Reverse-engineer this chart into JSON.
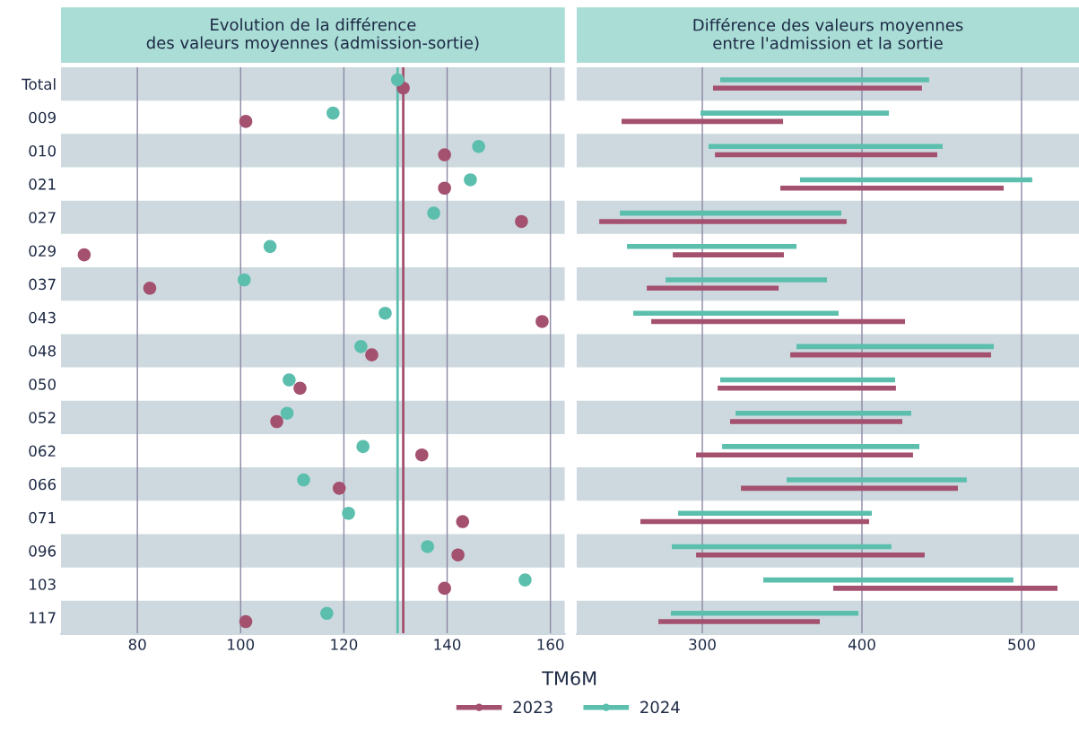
{
  "chart_data": [
    {
      "type": "scatter",
      "orientation": "horizontal",
      "title": "Evolution de la différence\ndes valeurs moyennes (admission-sortie)",
      "xlabel": "TM6M",
      "categories": [
        "Total",
        "009",
        "010",
        "021",
        "027",
        "029",
        "037",
        "043",
        "048",
        "050",
        "052",
        "062",
        "066",
        "071",
        "096",
        "103",
        "117"
      ],
      "series": [
        {
          "name": "2023",
          "color": "#a4506f",
          "values": [
            131.5,
            101.0,
            139.5,
            139.5,
            154.4,
            69.7,
            82.4,
            158.4,
            125.4,
            111.5,
            107.0,
            135.1,
            119.1,
            143.0,
            142.1,
            139.5,
            101.0
          ]
        },
        {
          "name": "2024",
          "color": "#5cbfae",
          "values": [
            130.4,
            117.9,
            146.1,
            144.5,
            137.4,
            105.7,
            100.7,
            128.0,
            123.3,
            109.4,
            109.0,
            123.7,
            112.2,
            120.9,
            136.2,
            155.1,
            116.7
          ]
        }
      ],
      "ref_lines": [
        {
          "axis": "x",
          "value": 131.5,
          "color": "#a4506f"
        },
        {
          "axis": "x",
          "value": 130.4,
          "color": "#5cbfae"
        }
      ],
      "bands": [
        {
          "axis": "y",
          "from": "Total",
          "to": "Total",
          "color": "#cdd9de"
        },
        {
          "axis": "y",
          "from": "010",
          "to": "010",
          "color": "#cdd9de"
        },
        {
          "axis": "y",
          "from": "027",
          "to": "027",
          "color": "#cdd9de"
        },
        {
          "axis": "y",
          "from": "037",
          "to": "037",
          "color": "#cdd9de"
        },
        {
          "axis": "y",
          "from": "048",
          "to": "048",
          "color": "#cdd9de"
        },
        {
          "axis": "y",
          "from": "052",
          "to": "052",
          "color": "#cdd9de"
        },
        {
          "axis": "y",
          "from": "066",
          "to": "066",
          "color": "#cdd9de"
        },
        {
          "axis": "y",
          "from": "096",
          "to": "096",
          "color": "#cdd9de"
        },
        {
          "axis": "y",
          "from": "117",
          "to": "117",
          "color": "#cdd9de"
        }
      ],
      "xlim": [
        65.2,
        162.8
      ],
      "xticks": [
        80,
        100,
        120,
        140,
        160
      ],
      "grid": "x",
      "marker": "circle",
      "legend": "bottom"
    },
    {
      "type": "bar",
      "orientation": "horizontal",
      "title": "Différence des valeurs moyennes\nentre l'admission et la sortie",
      "categories": [
        "Total",
        "009",
        "010",
        "021",
        "027",
        "029",
        "037",
        "043",
        "048",
        "050",
        "052",
        "062",
        "066",
        "071",
        "096",
        "103",
        "117"
      ],
      "series": [
        {
          "color": "#a4506f",
          "base": [
            306.7,
            249.4,
            307.9,
            348.9,
            235.4,
            281.5,
            265.2,
            268.0,
            355.1,
            309.6,
            317.4,
            296.1,
            324.2,
            261.2,
            296.1,
            382.0,
            272.5
          ],
          "values": [
            130.9,
            101.2,
            139.3,
            139.9,
            155.0,
            69.6,
            82.6,
            159.0,
            125.8,
            111.7,
            107.9,
            135.9,
            135.9,
            143.3,
            143.2,
            140.5,
            101.1
          ]
        },
        {
          "color": "#5cbfae",
          "base": [
            311.2,
            298.9,
            303.9,
            361.2,
            248.3,
            252.8,
            277.0,
            256.7,
            359.0,
            311.2,
            320.8,
            312.4,
            352.8,
            284.8,
            280.9,
            338.2,
            280.3
          ],
          "values": [
            130.9,
            118.0,
            146.7,
            145.5,
            138.8,
            106.2,
            101.1,
            128.7,
            123.6,
            109.6,
            110.1,
            123.6,
            112.9,
            121.4,
            137.6,
            156.7,
            117.5
          ]
        }
      ],
      "bands": [
        {
          "axis": "y",
          "from": "Total",
          "to": "Total",
          "color": "#cdd9de"
        },
        {
          "axis": "y",
          "from": "010",
          "to": "010",
          "color": "#cdd9de"
        },
        {
          "axis": "y",
          "from": "027",
          "to": "027",
          "color": "#cdd9de"
        },
        {
          "axis": "y",
          "from": "037",
          "to": "037",
          "color": "#cdd9de"
        },
        {
          "axis": "y",
          "from": "048",
          "to": "048",
          "color": "#cdd9de"
        },
        {
          "axis": "y",
          "from": "052",
          "to": "052",
          "color": "#cdd9de"
        },
        {
          "axis": "y",
          "from": "066",
          "to": "066",
          "color": "#cdd9de"
        },
        {
          "axis": "y",
          "from": "096",
          "to": "096",
          "color": "#cdd9de"
        },
        {
          "axis": "y",
          "from": "117",
          "to": "117",
          "color": "#cdd9de"
        }
      ],
      "xlim": [
        221.3,
        536
      ],
      "xticks": [
        300,
        400,
        500
      ],
      "grid": "x",
      "tick_labels": "x"
    }
  ]
}
